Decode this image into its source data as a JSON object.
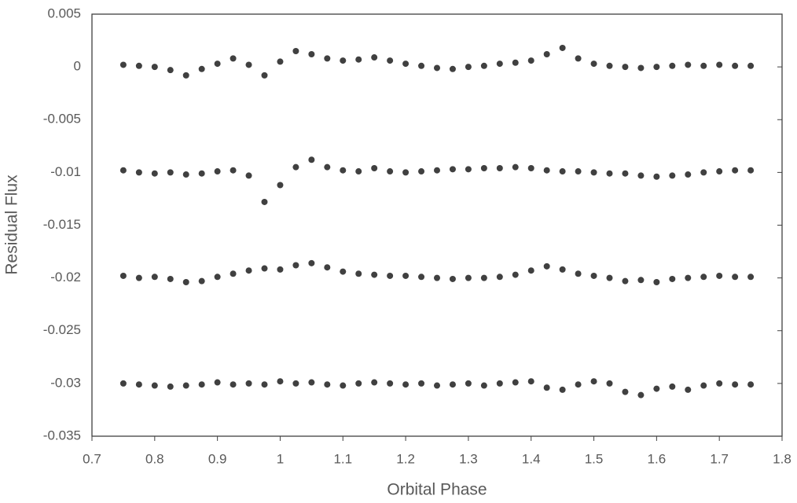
{
  "chart_data": {
    "type": "scatter",
    "x_label": "Orbital Phase",
    "y_label": "Residual Flux",
    "xlim": [
      0.7,
      1.8
    ],
    "xticks": [
      0.7,
      0.8,
      0.9,
      1,
      1.1,
      1.2,
      1.3,
      1.4,
      1.5,
      1.6,
      1.7,
      1.8
    ],
    "ylim": [
      -0.035,
      0.005
    ],
    "yticks": [
      0.005,
      0,
      -0.005,
      -0.01,
      -0.015,
      -0.02,
      -0.025,
      -0.03,
      -0.035
    ],
    "x": [
      0.75,
      0.775,
      0.8,
      0.825,
      0.85,
      0.875,
      0.9,
      0.925,
      0.95,
      0.975,
      1.0,
      1.025,
      1.05,
      1.075,
      1.1,
      1.125,
      1.15,
      1.175,
      1.2,
      1.225,
      1.25,
      1.275,
      1.3,
      1.325,
      1.35,
      1.375,
      1.4,
      1.425,
      1.45,
      1.475,
      1.5,
      1.525,
      1.55,
      1.575,
      1.6,
      1.625,
      1.65,
      1.675,
      1.7,
      1.725,
      1.75
    ],
    "series": [
      {
        "color": "#404040",
        "values": [
          0.0002,
          0.0001,
          0,
          -0.0003,
          -0.0008,
          -0.0002,
          0.0003,
          0.0008,
          0.0002,
          -0.0008,
          0.0005,
          0.0015,
          0.0012,
          0.0008,
          0.0006,
          0.0007,
          0.0009,
          0.0006,
          0.0003,
          0.0001,
          -0.0001,
          -0.0002,
          0,
          0.0001,
          0.0003,
          0.0004,
          0.0006,
          0.0012,
          0.0018,
          0.0008,
          0.0003,
          0.0001,
          0,
          -0.0001,
          0,
          0.0001,
          0.0002,
          0.0001,
          0.0002,
          0.0001,
          0.0001
        ]
      },
      {
        "color": "#404040",
        "values": [
          -0.0098,
          -0.01,
          -0.0101,
          -0.01,
          -0.0102,
          -0.0101,
          -0.0099,
          -0.0098,
          -0.0103,
          -0.0128,
          -0.0112,
          -0.0095,
          -0.0088,
          -0.0095,
          -0.0098,
          -0.0099,
          -0.0096,
          -0.0099,
          -0.01,
          -0.0099,
          -0.0098,
          -0.0097,
          -0.0097,
          -0.0096,
          -0.0096,
          -0.0095,
          -0.0096,
          -0.0098,
          -0.0099,
          -0.0099,
          -0.01,
          -0.0101,
          -0.0101,
          -0.0103,
          -0.0104,
          -0.0103,
          -0.0102,
          -0.01,
          -0.0099,
          -0.0098,
          -0.0098
        ]
      },
      {
        "color": "#404040",
        "values": [
          -0.0198,
          -0.02,
          -0.0199,
          -0.0201,
          -0.0204,
          -0.0203,
          -0.0199,
          -0.0196,
          -0.0193,
          -0.0191,
          -0.0192,
          -0.0188,
          -0.0186,
          -0.019,
          -0.0194,
          -0.0196,
          -0.0197,
          -0.0198,
          -0.0198,
          -0.0199,
          -0.02,
          -0.0201,
          -0.02,
          -0.02,
          -0.0199,
          -0.0197,
          -0.0193,
          -0.0189,
          -0.0192,
          -0.0196,
          -0.0198,
          -0.02,
          -0.0203,
          -0.0202,
          -0.0204,
          -0.0201,
          -0.02,
          -0.0199,
          -0.0198,
          -0.0199,
          -0.0199
        ]
      },
      {
        "color": "#404040",
        "values": [
          -0.03,
          -0.0301,
          -0.0302,
          -0.0303,
          -0.0302,
          -0.0301,
          -0.0299,
          -0.0301,
          -0.03,
          -0.0301,
          -0.0298,
          -0.03,
          -0.0299,
          -0.0301,
          -0.0302,
          -0.03,
          -0.0299,
          -0.03,
          -0.0301,
          -0.03,
          -0.0302,
          -0.0301,
          -0.03,
          -0.0302,
          -0.03,
          -0.0299,
          -0.0298,
          -0.0304,
          -0.0306,
          -0.0301,
          -0.0298,
          -0.03,
          -0.0308,
          -0.0311,
          -0.0305,
          -0.0303,
          -0.0306,
          -0.0302,
          -0.03,
          -0.0301,
          -0.0301
        ]
      }
    ]
  }
}
